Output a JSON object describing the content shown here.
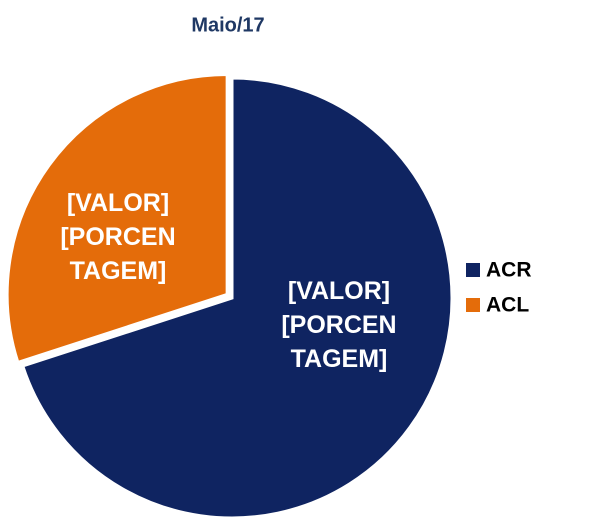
{
  "chart_data": {
    "type": "pie",
    "title": "Maio/17",
    "categories": [
      "ACR",
      "ACL"
    ],
    "values": [
      70,
      30
    ],
    "labels": [
      "[VALOR] [PORCENTAGEM]",
      "[VALOR] [PORCENTAGEM]"
    ],
    "colors": [
      "#0f2461",
      "#e46c0a"
    ],
    "legend": "right"
  }
}
